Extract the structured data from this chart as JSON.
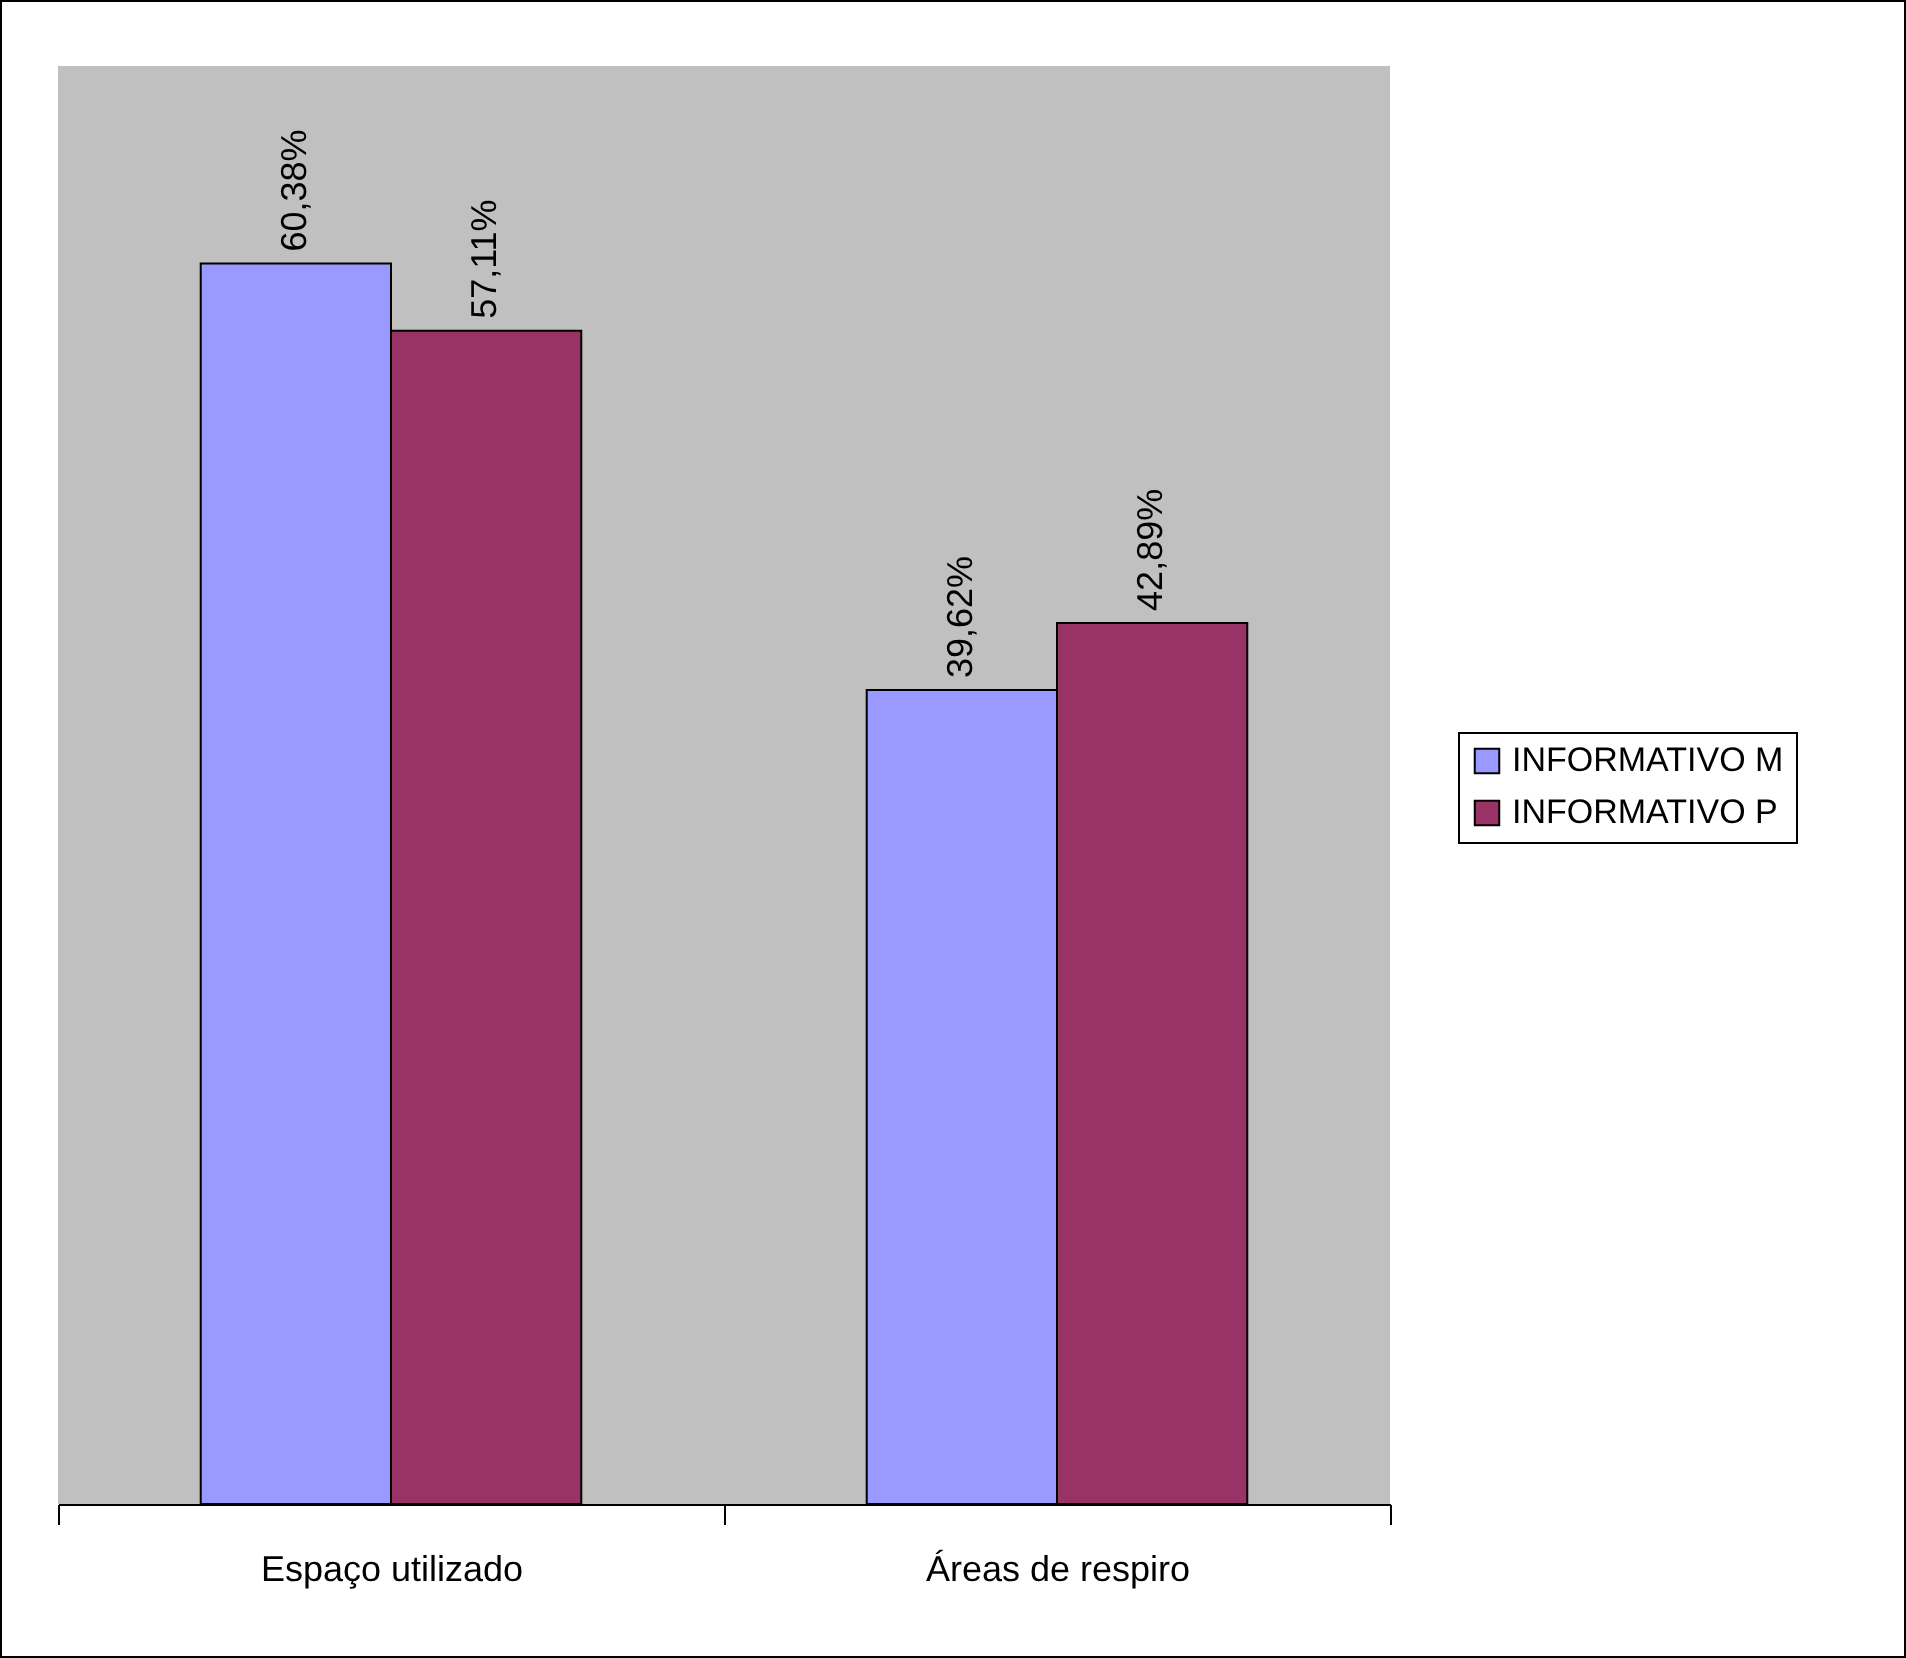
{
  "chart_data": {
    "type": "bar",
    "categories": [
      "Espaço utilizado",
      "Áreas de respiro"
    ],
    "series": [
      {
        "name": "INFORMATIVO M",
        "color": "#9999ff",
        "values": [
          60.38,
          39.62
        ],
        "value_labels": [
          "60,38%",
          "39,62%"
        ]
      },
      {
        "name": "INFORMATIVO P",
        "color": "#993366",
        "values": [
          57.11,
          42.89
        ],
        "value_labels": [
          "57,11%",
          "42,89%"
        ]
      }
    ],
    "ylim": [
      0,
      70
    ],
    "legend": "right",
    "tick_labels": "x"
  }
}
